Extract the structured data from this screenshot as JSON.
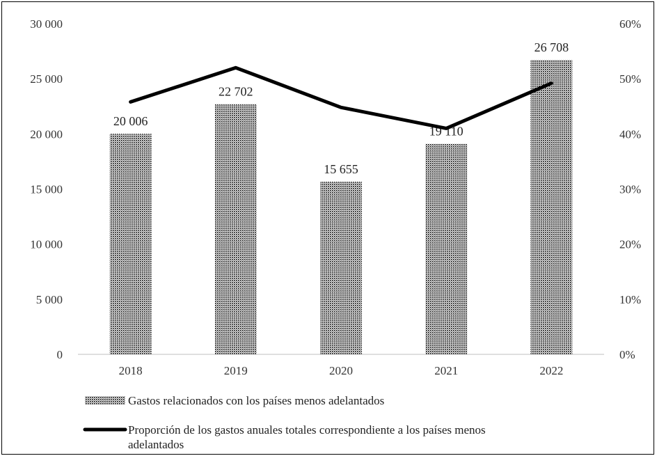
{
  "chart_data": {
    "type": "bar",
    "categories": [
      "2018",
      "2019",
      "2020",
      "2021",
      "2022"
    ],
    "series": [
      {
        "name": "Gastos relacionados con los países menos adelantados",
        "kind": "bar",
        "axis": "left",
        "values": [
          20006,
          22702,
          15655,
          19110,
          26708
        ],
        "value_labels": [
          "20 006",
          "22 702",
          "15 655",
          "19 110",
          "26 708"
        ]
      },
      {
        "name": "Proporción de los gastos anuales totales correspondiente a los países menos adelantados",
        "kind": "line",
        "axis": "right",
        "values": [
          45.8,
          52.0,
          44.8,
          41.0,
          49.2
        ]
      }
    ],
    "y_left": {
      "ylim": [
        0,
        30000
      ],
      "ticks": [
        0,
        5000,
        10000,
        15000,
        20000,
        25000,
        30000
      ],
      "tick_labels": [
        "0",
        "5 000",
        "10 000",
        "15 000",
        "20 000",
        "25 000",
        "30 000"
      ]
    },
    "y_right": {
      "ylim": [
        0,
        60
      ],
      "ticks": [
        0,
        10,
        20,
        30,
        40,
        50,
        60
      ],
      "tick_labels": [
        "0%",
        "10%",
        "20%",
        "30%",
        "40%",
        "50%",
        "60%"
      ]
    },
    "legend_position": "bottom",
    "grid": false,
    "colors": {
      "bar_dots": "#000000",
      "line": "#000000"
    }
  }
}
